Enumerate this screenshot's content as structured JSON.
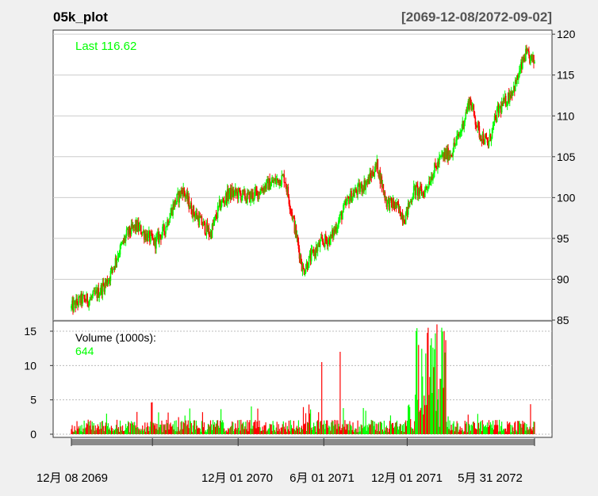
{
  "chart_data": [
    {
      "type": "candlestick",
      "title": "05k_plot",
      "date_range": "[2069-12-08/2072-09-02]",
      "last_label": "Last 116.62",
      "ylim": [
        85,
        120.5
      ],
      "y_ticks": [
        85,
        90,
        95,
        100,
        105,
        110,
        115,
        120
      ],
      "grid": true,
      "up_color": "#00ff00",
      "down_color": "#ff0000",
      "price_trend": {
        "x_fraction": [
          0,
          0.02,
          0.04,
          0.06,
          0.08,
          0.1,
          0.12,
          0.14,
          0.16,
          0.18,
          0.2,
          0.22,
          0.24,
          0.26,
          0.28,
          0.3,
          0.32,
          0.34,
          0.36,
          0.38,
          0.4,
          0.42,
          0.44,
          0.46,
          0.48,
          0.5,
          0.52,
          0.54,
          0.56,
          0.58,
          0.6,
          0.62,
          0.64,
          0.66,
          0.68,
          0.7,
          0.72,
          0.74,
          0.76,
          0.78,
          0.8,
          0.82,
          0.84,
          0.86,
          0.88,
          0.9,
          0.92,
          0.94,
          0.96,
          0.98,
          1.0
        ],
        "close": [
          86.5,
          87.5,
          87.5,
          88.5,
          90,
          93,
          95.5,
          96.5,
          95.5,
          94.5,
          96,
          99,
          101,
          98.5,
          97,
          95.5,
          99,
          100.5,
          100.5,
          100,
          100.5,
          101.5,
          102,
          102.5,
          97,
          91,
          93,
          94.5,
          95,
          97.5,
          100,
          101,
          102,
          104,
          99.5,
          99,
          97.5,
          101,
          100.5,
          103,
          105,
          105.5,
          108,
          112,
          108,
          106.5,
          110.5,
          112,
          114,
          117.5,
          116.6
        ]
      }
    },
    {
      "type": "bar",
      "title": "Volume (1000s):",
      "last_value": "644",
      "ylim": [
        0,
        16.5
      ],
      "y_ticks": [
        0,
        5,
        10,
        15
      ],
      "grid": true,
      "notable_spikes": [
        {
          "x_fraction": 0.54,
          "value": 10.5
        },
        {
          "x_fraction": 0.58,
          "value": 12.0
        },
        {
          "x_fraction": 0.745,
          "value": 15.0
        },
        {
          "x_fraction": 0.77,
          "value": 15.5
        },
        {
          "x_fraction": 0.79,
          "value": 16.0
        },
        {
          "x_fraction": 0.8,
          "value": 15.5
        }
      ]
    }
  ],
  "x_axis": {
    "tick_labels": [
      "12月 08 2069",
      "12月 01 2070",
      "6月 01 2071",
      "12月 01 2071",
      "5月 31 2072"
    ]
  }
}
